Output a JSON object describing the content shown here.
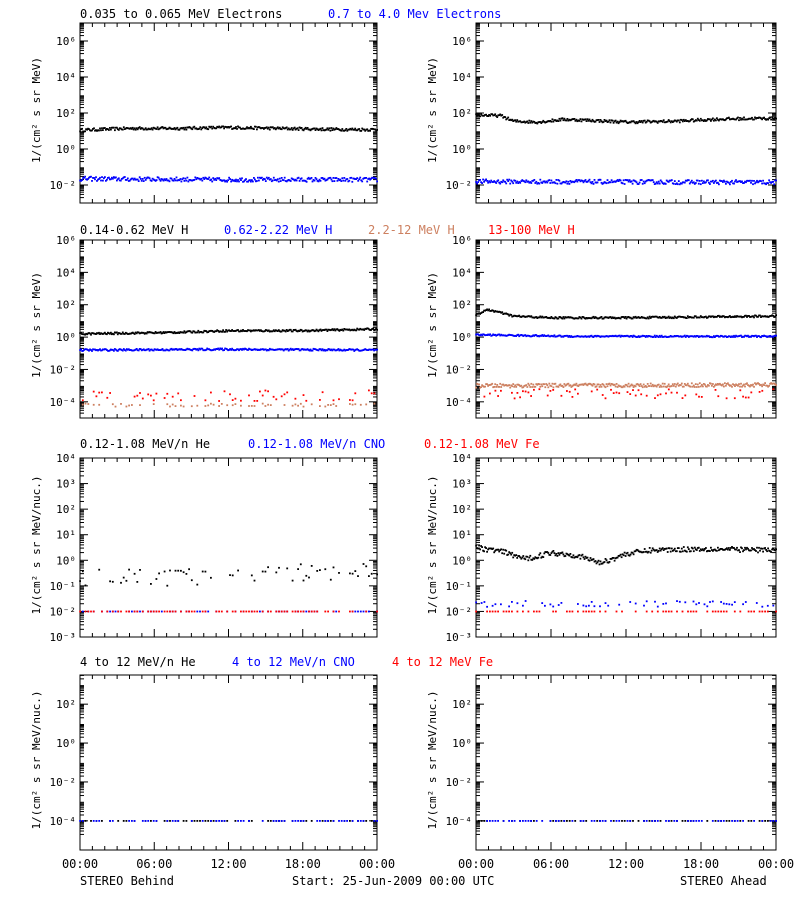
{
  "colors": {
    "black": "#000000",
    "blue": "#0000ff",
    "tan": "#cd8060",
    "red": "#ff0000"
  },
  "footer": {
    "left": "STEREO Behind",
    "center": "Start: 25-Jun-2009 00:00 UTC",
    "right": "STEREO Ahead"
  },
  "rows": [
    {
      "labels": [
        {
          "text": "0.035 to 0.065 MeV Electrons",
          "color": "black"
        },
        {
          "text": "0.7 to 4.0 Mev Electrons",
          "color": "blue"
        }
      ],
      "ylabel": "1/(cm² s sr MeV)"
    },
    {
      "labels": [
        {
          "text": "0.14-0.62 MeV H",
          "color": "black"
        },
        {
          "text": "0.62-2.22 MeV H",
          "color": "blue"
        },
        {
          "text": "2.2-12 MeV H",
          "color": "tan"
        },
        {
          "text": "13-100 MeV H",
          "color": "red"
        }
      ],
      "ylabel": "1/(cm² s sr MeV)"
    },
    {
      "labels": [
        {
          "text": "0.12-1.08 MeV/n He",
          "color": "black"
        },
        {
          "text": "0.12-1.08 MeV/n CNO",
          "color": "blue"
        },
        {
          "text": "0.12-1.08 MeV Fe",
          "color": "red"
        }
      ],
      "ylabel": "1/(cm² s sr MeV/nuc.)"
    },
    {
      "labels": [
        {
          "text": "4 to 12 MeV/n He",
          "color": "black"
        },
        {
          "text": "4 to 12 MeV/n CNO",
          "color": "blue"
        },
        {
          "text": "4 to 12 MeV Fe",
          "color": "red"
        }
      ],
      "ylabel": "1/(cm² s sr MeV/nuc.)"
    }
  ],
  "chart_data": [
    {
      "type": "scatter",
      "panel": "behind-electrons",
      "row": 0,
      "col": 0,
      "x_ticks": [
        "00:00",
        "06:00",
        "12:00",
        "18:00",
        "00:00"
      ],
      "ylim_log10": [
        -3,
        7
      ],
      "yscale": "log",
      "y_ticks": [
        {
          "e": -2,
          "label": "10⁻²"
        },
        {
          "e": 0,
          "label": "10⁰"
        },
        {
          "e": 2,
          "label": "10²"
        },
        {
          "e": 4,
          "label": "10⁴"
        },
        {
          "e": 6,
          "label": "10⁶"
        }
      ],
      "series": [
        {
          "name": "0.035 to 0.065 MeV Electrons",
          "color": "black",
          "style": "dense",
          "log10_points": [
            [
              0,
              1.05
            ],
            [
              4,
              1.15
            ],
            [
              8,
              1.15
            ],
            [
              12,
              1.2
            ],
            [
              16,
              1.15
            ],
            [
              20,
              1.1
            ],
            [
              24,
              1.08
            ]
          ],
          "jitter": 0.08
        },
        {
          "name": "0.7 to 4.0 Mev Electrons",
          "color": "blue",
          "style": "dense",
          "log10_points": [
            [
              0,
              -1.65
            ],
            [
              12,
              -1.7
            ],
            [
              24,
              -1.7
            ]
          ],
          "jitter": 0.12
        }
      ]
    },
    {
      "type": "scatter",
      "panel": "ahead-electrons",
      "row": 0,
      "col": 1,
      "x_ticks": [
        "00:00",
        "06:00",
        "12:00",
        "18:00",
        "00:00"
      ],
      "ylim_log10": [
        -3,
        7
      ],
      "yscale": "log",
      "y_ticks": [
        {
          "e": -2,
          "label": "10⁻²"
        },
        {
          "e": 0,
          "label": "10⁰"
        },
        {
          "e": 2,
          "label": "10²"
        },
        {
          "e": 4,
          "label": "10⁴"
        },
        {
          "e": 6,
          "label": "10⁶"
        }
      ],
      "series": [
        {
          "name": "0.035 to 0.065 MeV Electrons",
          "color": "black",
          "style": "dense",
          "log10_points": [
            [
              0,
              1.9
            ],
            [
              2,
              1.85
            ],
            [
              3,
              1.55
            ],
            [
              5,
              1.5
            ],
            [
              7,
              1.65
            ],
            [
              9,
              1.6
            ],
            [
              12,
              1.5
            ],
            [
              16,
              1.55
            ],
            [
              19,
              1.65
            ],
            [
              22,
              1.7
            ],
            [
              24,
              1.7
            ]
          ],
          "jitter": 0.08
        },
        {
          "name": "0.7 to 4.0 Mev Electrons",
          "color": "blue",
          "style": "dense",
          "log10_points": [
            [
              0,
              -1.8
            ],
            [
              24,
              -1.85
            ]
          ],
          "jitter": 0.12
        }
      ]
    },
    {
      "type": "scatter",
      "panel": "behind-protons",
      "row": 1,
      "col": 0,
      "x_ticks": [
        "00:00",
        "06:00",
        "12:00",
        "18:00",
        "00:00"
      ],
      "ylim_log10": [
        -5,
        6
      ],
      "yscale": "log",
      "y_ticks": [
        {
          "e": -4,
          "label": "10⁻⁴"
        },
        {
          "e": -2,
          "label": "10⁻²"
        },
        {
          "e": 0,
          "label": "10⁰"
        },
        {
          "e": 2,
          "label": "10²"
        },
        {
          "e": 4,
          "label": "10⁴"
        },
        {
          "e": 6,
          "label": "10⁶"
        }
      ],
      "series": [
        {
          "name": "0.14-0.62 MeV H",
          "color": "black",
          "style": "dense",
          "log10_points": [
            [
              0,
              0.2
            ],
            [
              8,
              0.3
            ],
            [
              12,
              0.4
            ],
            [
              18,
              0.4
            ],
            [
              24,
              0.5
            ]
          ],
          "jitter": 0.06
        },
        {
          "name": "0.62-2.22 MeV H",
          "color": "blue",
          "style": "dense",
          "log10_points": [
            [
              0,
              -0.8
            ],
            [
              12,
              -0.75
            ],
            [
              24,
              -0.8
            ]
          ],
          "jitter": 0.06
        },
        {
          "name": "2.2-12 MeV H",
          "color": "tan",
          "style": "sparse",
          "log10_points": [
            [
              0,
              -4.2
            ],
            [
              24,
              -4.2
            ]
          ],
          "jitter": 0.1
        },
        {
          "name": "13-100 MeV H",
          "color": "red",
          "style": "sparse",
          "log10_points": [
            [
              0,
              -3.6
            ],
            [
              24,
              -3.6
            ]
          ],
          "jitter": 0.35
        }
      ]
    },
    {
      "type": "scatter",
      "panel": "ahead-protons",
      "row": 1,
      "col": 1,
      "x_ticks": [
        "00:00",
        "06:00",
        "12:00",
        "18:00",
        "00:00"
      ],
      "ylim_log10": [
        -5,
        6
      ],
      "yscale": "log",
      "y_ticks": [
        {
          "e": -4,
          "label": "10⁻⁴"
        },
        {
          "e": -2,
          "label": "10⁻²"
        },
        {
          "e": 0,
          "label": "10⁰"
        },
        {
          "e": 2,
          "label": "10²"
        },
        {
          "e": 4,
          "label": "10⁴"
        },
        {
          "e": 6,
          "label": "10⁶"
        }
      ],
      "series": [
        {
          "name": "0.14-0.62 MeV H",
          "color": "black",
          "style": "dense",
          "log10_points": [
            [
              0,
              1.4
            ],
            [
              1,
              1.7
            ],
            [
              3,
              1.3
            ],
            [
              6,
              1.2
            ],
            [
              12,
              1.2
            ],
            [
              18,
              1.25
            ],
            [
              24,
              1.3
            ]
          ],
          "jitter": 0.06
        },
        {
          "name": "0.62-2.22 MeV H",
          "color": "blue",
          "style": "dense",
          "log10_points": [
            [
              0,
              0.15
            ],
            [
              8,
              0.05
            ],
            [
              16,
              0.05
            ],
            [
              24,
              0.05
            ]
          ],
          "jitter": 0.05
        },
        {
          "name": "2.2-12 MeV H",
          "color": "tan",
          "style": "dense",
          "log10_points": [
            [
              0,
              -3.0
            ],
            [
              24,
              -2.95
            ]
          ],
          "jitter": 0.12
        },
        {
          "name": "13-100 MeV H",
          "color": "red",
          "style": "sparse",
          "log10_points": [
            [
              0,
              -3.5
            ],
            [
              24,
              -3.5
            ]
          ],
          "jitter": 0.3
        }
      ]
    },
    {
      "type": "scatter",
      "panel": "behind-heavy-low",
      "row": 2,
      "col": 0,
      "x_ticks": [
        "00:00",
        "06:00",
        "12:00",
        "18:00",
        "00:00"
      ],
      "ylim_log10": [
        -3,
        4
      ],
      "yscale": "log",
      "y_ticks": [
        {
          "e": -3,
          "label": "10⁻³"
        },
        {
          "e": -2,
          "label": "10⁻²"
        },
        {
          "e": -1,
          "label": "10⁻¹"
        },
        {
          "e": 0,
          "label": "10⁰"
        },
        {
          "e": 1,
          "label": "10¹"
        },
        {
          "e": 2,
          "label": "10²"
        },
        {
          "e": 3,
          "label": "10³"
        },
        {
          "e": 4,
          "label": "10⁴"
        }
      ],
      "series": [
        {
          "name": "0.12-1.08 MeV/n He",
          "color": "black",
          "style": "sparse",
          "log10_points": [
            [
              0,
              -0.7
            ],
            [
              12,
              -0.6
            ],
            [
              24,
              -0.4
            ]
          ],
          "jitter": 0.35
        },
        {
          "name": "0.12-1.08 MeV/n CNO",
          "color": "blue",
          "style": "sparse",
          "log10_points": [
            [
              0,
              -2.0
            ],
            [
              24,
              -2.0
            ]
          ],
          "jitter": 0.0
        },
        {
          "name": "0.12-1.08 MeV Fe",
          "color": "red",
          "style": "sparse",
          "log10_points": [
            [
              0,
              -2.0
            ],
            [
              24,
              -2.0
            ]
          ],
          "jitter": 0.0
        }
      ]
    },
    {
      "type": "scatter",
      "panel": "ahead-heavy-low",
      "row": 2,
      "col": 1,
      "x_ticks": [
        "00:00",
        "06:00",
        "12:00",
        "18:00",
        "00:00"
      ],
      "ylim_log10": [
        -3,
        4
      ],
      "yscale": "log",
      "y_ticks": [
        {
          "e": -3,
          "label": "10⁻³"
        },
        {
          "e": -2,
          "label": "10⁻²"
        },
        {
          "e": -1,
          "label": "10⁻¹"
        },
        {
          "e": 0,
          "label": "10⁰"
        },
        {
          "e": 1,
          "label": "10¹"
        },
        {
          "e": 2,
          "label": "10²"
        },
        {
          "e": 3,
          "label": "10³"
        },
        {
          "e": 4,
          "label": "10⁴"
        }
      ],
      "series": [
        {
          "name": "0.12-1.08 MeV/n He",
          "color": "black",
          "style": "dense",
          "log10_points": [
            [
              0,
              0.5
            ],
            [
              2,
              0.35
            ],
            [
              4,
              0.05
            ],
            [
              6,
              0.3
            ],
            [
              8,
              0.2
            ],
            [
              10,
              -0.1
            ],
            [
              12,
              0.25
            ],
            [
              14,
              0.4
            ],
            [
              18,
              0.45
            ],
            [
              24,
              0.4
            ]
          ],
          "jitter": 0.1
        },
        {
          "name": "0.12-1.08 MeV/n CNO",
          "color": "blue",
          "style": "sparse",
          "log10_points": [
            [
              0,
              -1.7
            ],
            [
              24,
              -1.7
            ]
          ],
          "jitter": 0.12
        },
        {
          "name": "0.12-1.08 MeV Fe",
          "color": "red",
          "style": "sparse",
          "log10_points": [
            [
              0,
              -2.0
            ],
            [
              24,
              -2.0
            ]
          ],
          "jitter": 0.0
        }
      ]
    },
    {
      "type": "scatter",
      "panel": "behind-heavy-high",
      "row": 3,
      "col": 0,
      "x_ticks": [
        "00:00",
        "06:00",
        "12:00",
        "18:00",
        "00:00"
      ],
      "ylim_log10": [
        -5.5,
        3.5
      ],
      "yscale": "log",
      "y_ticks": [
        {
          "e": -4,
          "label": "10⁻⁴"
        },
        {
          "e": -2,
          "label": "10⁻²"
        },
        {
          "e": 0,
          "label": "10⁰"
        },
        {
          "e": 2,
          "label": "10²"
        }
      ],
      "series": [
        {
          "name": "4 to 12 MeV/n He",
          "color": "black",
          "style": "sparse",
          "log10_points": [
            [
              0,
              -4.0
            ],
            [
              24,
              -4.0
            ]
          ],
          "jitter": 0.0
        },
        {
          "name": "4 to 12 MeV/n CNO",
          "color": "blue",
          "style": "sparse",
          "log10_points": [
            [
              0,
              -4.0
            ],
            [
              24,
              -4.0
            ]
          ],
          "jitter": 0.0
        }
      ]
    },
    {
      "type": "scatter",
      "panel": "ahead-heavy-high",
      "row": 3,
      "col": 1,
      "x_ticks": [
        "00:00",
        "06:00",
        "12:00",
        "18:00",
        "00:00"
      ],
      "ylim_log10": [
        -5.5,
        3.5
      ],
      "yscale": "log",
      "y_ticks": [
        {
          "e": -4,
          "label": "10⁻⁴"
        },
        {
          "e": -2,
          "label": "10⁻²"
        },
        {
          "e": 0,
          "label": "10⁰"
        },
        {
          "e": 2,
          "label": "10²"
        }
      ],
      "series": [
        {
          "name": "4 to 12 MeV/n He",
          "color": "black",
          "style": "sparse",
          "log10_points": [
            [
              0,
              -4.0
            ],
            [
              24,
              -4.0
            ]
          ],
          "jitter": 0.0
        },
        {
          "name": "4 to 12 MeV/n CNO",
          "color": "blue",
          "style": "sparse",
          "log10_points": [
            [
              0,
              -4.0
            ],
            [
              24,
              -4.0
            ]
          ],
          "jitter": 0.0
        }
      ]
    }
  ]
}
